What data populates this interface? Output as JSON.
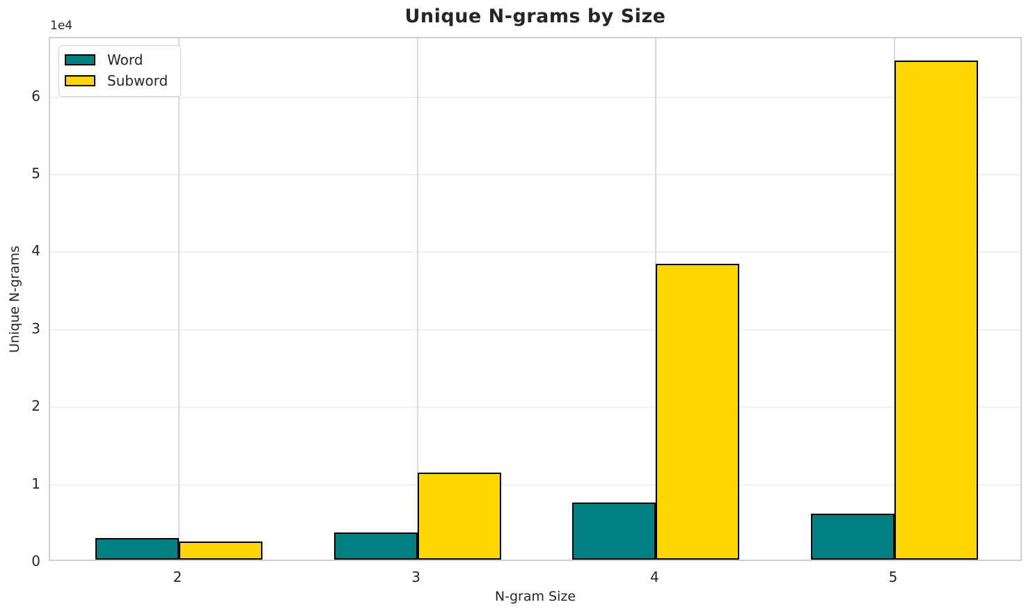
{
  "chart_data": {
    "type": "bar",
    "title": "Unique N-grams by Size",
    "xlabel": "N-gram Size",
    "ylabel": "Unique N-grams",
    "y_offset_text": "1e4",
    "categories": [
      "2",
      "3",
      "4",
      "5"
    ],
    "x": [
      2,
      3,
      4,
      5
    ],
    "series": [
      {
        "name": "Word",
        "color": "#008080",
        "values": [
          2800,
          3500,
          7400,
          5900
        ]
      },
      {
        "name": "Subword",
        "color": "#FFD700",
        "values": [
          2300,
          11200,
          38200,
          64400
        ]
      }
    ],
    "bar_edge_color": "#000000",
    "bar_width": 0.35,
    "xlim": [
      1.46,
      5.54
    ],
    "ylim": [
      0,
      67600
    ],
    "yticks": [
      0,
      10000,
      20000,
      30000,
      40000,
      50000,
      60000
    ],
    "ytick_labels": [
      "0",
      "1",
      "2",
      "3",
      "4",
      "5",
      "6"
    ],
    "grid": true,
    "legend_position": "upper-left"
  }
}
